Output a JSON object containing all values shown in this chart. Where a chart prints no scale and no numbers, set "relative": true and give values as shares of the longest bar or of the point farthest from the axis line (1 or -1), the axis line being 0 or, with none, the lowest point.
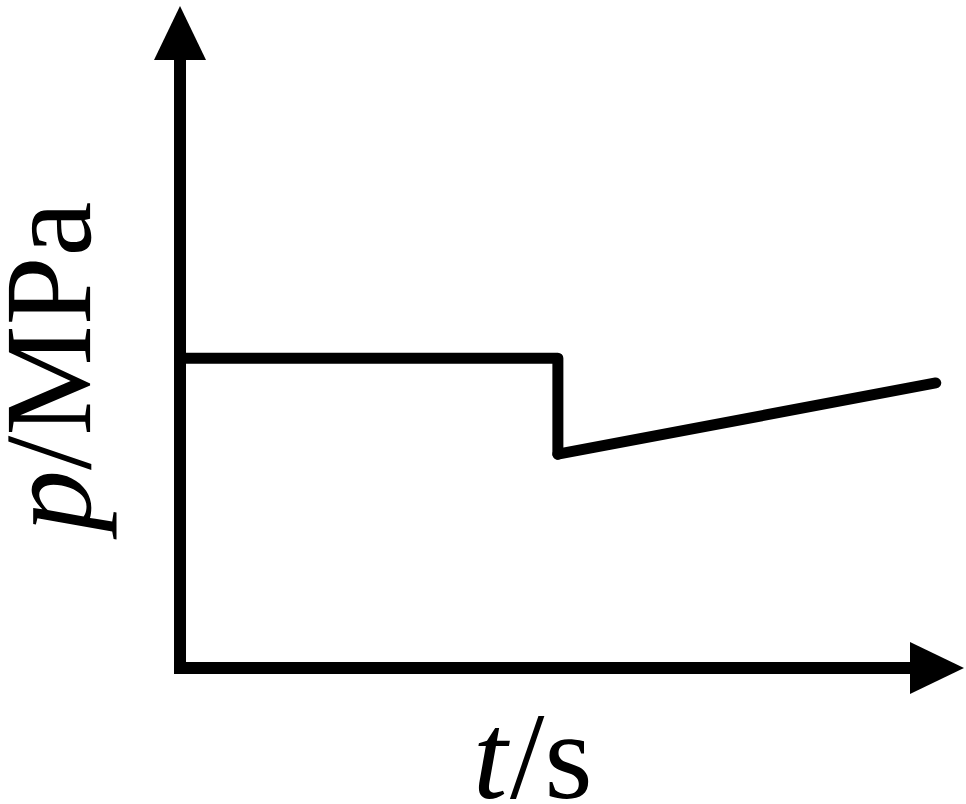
{
  "chart_data": {
    "type": "line",
    "relative": true,
    "xlabel": "*t*/s",
    "ylabel": "*p*/MPa",
    "categories": [
      null,
      null,
      null
    ],
    "series": [
      {
        "type": "step",
        "color": "#000000",
        "values": [
          1,
          0.69,
          null
        ]
      },
      {
        "color": "#000000",
        "values": [
          null,
          0.69,
          0.92
        ]
      }
    ],
    "marker": "none",
    "line_style": "solid"
  }
}
